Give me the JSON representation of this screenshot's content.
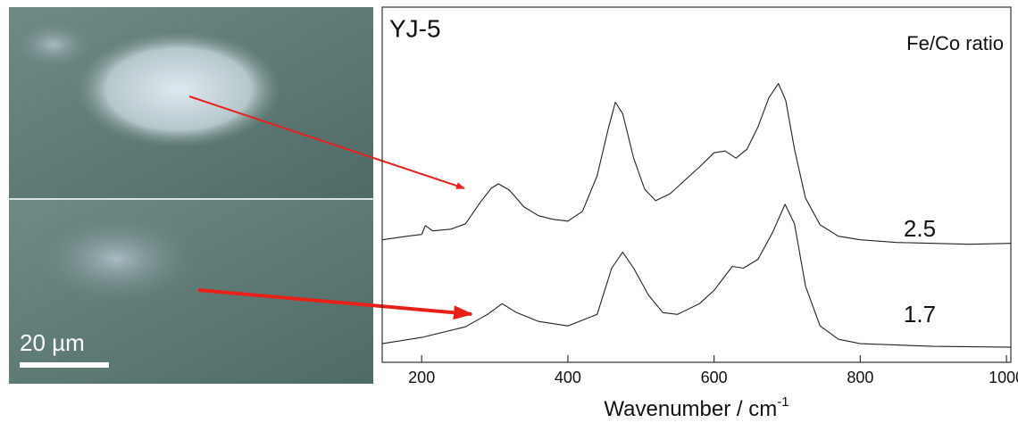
{
  "chart_data": {
    "type": "line",
    "title": "YJ-5",
    "legend_title": "Fe/Co ratio",
    "xlabel": "Wavenumber / cm",
    "xlabel_sup": "-1",
    "scale_bar": "20 µm",
    "xlim": [
      146,
      1006
    ],
    "xticks": [
      200,
      400,
      600,
      800,
      1000
    ],
    "ylim": [
      0,
      400
    ],
    "series": [
      {
        "name": "2.5",
        "color": "#222222",
        "x": [
          146,
          180,
          200,
          205,
          215,
          240,
          260,
          280,
          295,
          305,
          320,
          340,
          360,
          380,
          400,
          420,
          440,
          455,
          465,
          475,
          490,
          505,
          520,
          540,
          560,
          580,
          600,
          615,
          630,
          645,
          660,
          675,
          688,
          698,
          710,
          725,
          745,
          770,
          800,
          850,
          900,
          950,
          1006
        ],
        "values": [
          138,
          142,
          144,
          154,
          148,
          150,
          156,
          180,
          196,
          201,
          194,
          175,
          165,
          161,
          159,
          170,
          210,
          262,
          293,
          280,
          230,
          195,
          182,
          190,
          205,
          220,
          236,
          238,
          230,
          240,
          265,
          298,
          314,
          295,
          240,
          185,
          155,
          142,
          138,
          135,
          134,
          133,
          134
        ]
      },
      {
        "name": "1.7",
        "color": "#222222",
        "x": [
          146,
          200,
          260,
          290,
          310,
          330,
          360,
          400,
          440,
          460,
          475,
          490,
          510,
          530,
          550,
          580,
          600,
          625,
          640,
          660,
          680,
          697,
          710,
          725,
          745,
          770,
          800,
          900,
          1006
        ],
        "values": [
          21,
          28,
          40,
          54,
          66,
          56,
          46,
          41,
          54,
          106,
          124,
          106,
          76,
          56,
          54,
          66,
          81,
          108,
          106,
          116,
          146,
          178,
          156,
          86,
          41,
          26,
          21,
          18,
          17
        ]
      }
    ]
  }
}
